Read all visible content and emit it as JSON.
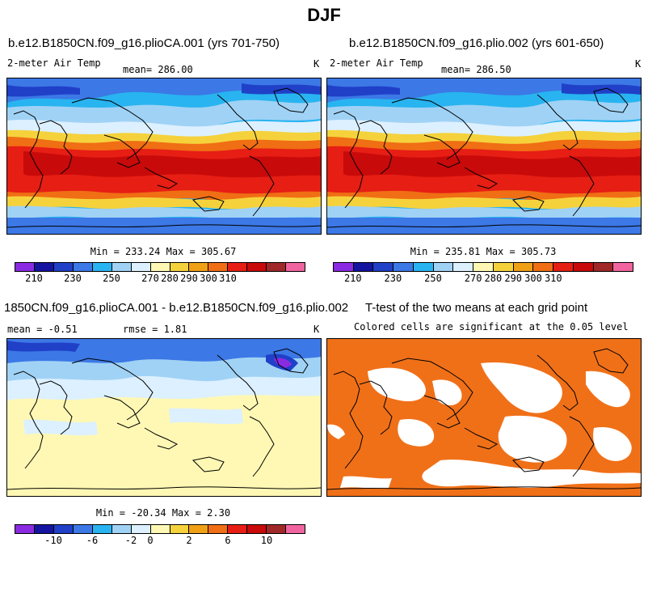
{
  "figure": {
    "title": "DJF"
  },
  "panels": {
    "top_left": {
      "title": "b.e12.B1850CN.f09_g16.plioCA.001 (yrs 701-750)",
      "variable": "2-meter Air Temp",
      "mean": "mean=  286.00",
      "units": "K",
      "stats": "Min = 233.24  Max = 305.67"
    },
    "top_right": {
      "title": "b.e12.B1850CN.f09_g16.plio.002 (yrs 601-650)",
      "variable": "2-meter Air Temp",
      "mean": "mean=  286.50",
      "units": "K",
      "stats": "Min = 235.81  Max = 305.73"
    },
    "bottom_left": {
      "title": "1850CN.f09_g16.plioCA.001 - b.e12.B1850CN.f09_g16.plio.002",
      "mean": "mean =   -0.51",
      "rmse": "rmse =    1.81",
      "units": "K",
      "stats": "Min = -20.34  Max =    2.30"
    },
    "bottom_right": {
      "title": "T-test of the two means at each grid point",
      "subtitle": "Colored cells are significant at the 0.05 level",
      "color": "#f07018"
    }
  },
  "colorbars": {
    "temperature": {
      "colors": [
        "#8a2be2",
        "#1414a0",
        "#2040c8",
        "#3c78e6",
        "#28b4f0",
        "#a0d2f5",
        "#dcf0ff",
        "#fff8b4",
        "#f5d23c",
        "#f0a014",
        "#f06e14",
        "#e61e14",
        "#c80a0a",
        "#a02828",
        "#f064a0"
      ],
      "labels": [
        "210",
        "230",
        "250",
        "270",
        "280",
        "290",
        "300",
        "310"
      ],
      "label_boundaries": [
        1,
        3,
        5,
        7,
        8,
        9,
        10,
        11
      ]
    },
    "difference": {
      "colors": [
        "#8a2be2",
        "#1414a0",
        "#2040c8",
        "#3c78e6",
        "#28b4f0",
        "#a0d2f5",
        "#dcf0ff",
        "#fff8b4",
        "#f5d23c",
        "#f0a014",
        "#f06e14",
        "#e61e14",
        "#c80a0a",
        "#a02828",
        "#f064a0"
      ],
      "labels": [
        "-10",
        "-6",
        "-2",
        "0",
        "2",
        "6",
        "10"
      ],
      "label_boundaries": [
        2,
        4,
        6,
        7,
        9,
        11,
        13
      ]
    }
  },
  "map_colors": {
    "polar": "#3c78e6",
    "cold": "#28b4f0",
    "cool": "#a0d2f5",
    "mild": "#dcf0ff",
    "warm": "#f5d23c",
    "hot": "#f06e14",
    "hotter": "#e61e14",
    "hottest": "#c80a0a",
    "diff_base": "#fff8b4",
    "diff_light": "#dcf0ff",
    "diff_mid": "#a0d2f5",
    "diff_strong": "#3c78e6",
    "diff_extreme": "#2040c8",
    "diff_purple": "#8a2be2"
  }
}
